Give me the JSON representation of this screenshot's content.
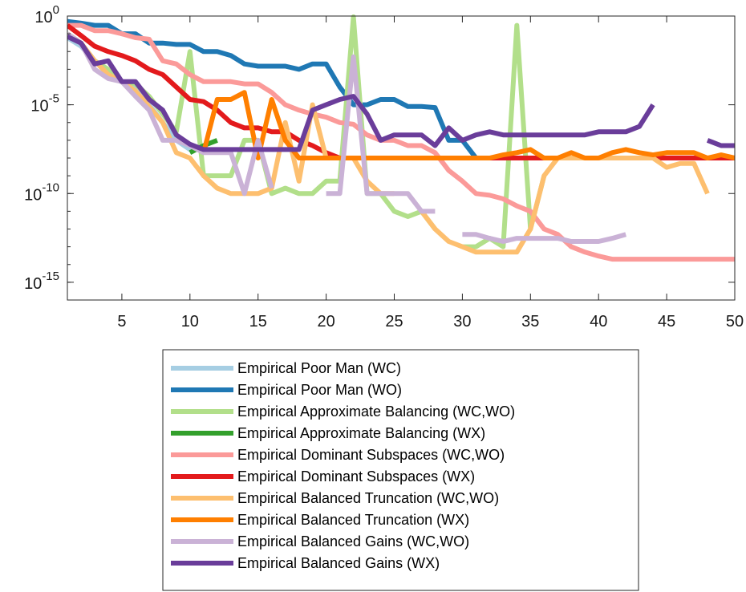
{
  "chart_data": {
    "type": "line",
    "title": "",
    "xlabel": "",
    "ylabel": "",
    "xlim": [
      1,
      50
    ],
    "ylim": [
      1e-16,
      1
    ],
    "yscale": "log",
    "xticks": [
      5,
      10,
      15,
      20,
      25,
      30,
      35,
      40,
      45,
      50
    ],
    "yticks": [
      {
        "exp": -15,
        "base": "10",
        "sup": "-15"
      },
      {
        "exp": -10,
        "base": "10",
        "sup": "-10"
      },
      {
        "exp": -5,
        "base": "10",
        "sup": "-5"
      },
      {
        "exp": 0,
        "base": "10",
        "sup": "0"
      }
    ],
    "grid": false,
    "legend_position": "below",
    "series": [
      {
        "name": "Empirical Poor Man (WC)",
        "color": "#a6cee3",
        "x": [
          1,
          2,
          3,
          4,
          5,
          6,
          7,
          8,
          9,
          10,
          11
        ],
        "y": [
          0.06,
          0.02,
          0.003,
          0.0005,
          0.0002,
          8e-05,
          1e-05,
          1e-06,
          1e-07,
          3e-08,
          3e-08
        ]
      },
      {
        "name": "Empirical Poor Man (WO)",
        "color": "#1f78b4",
        "x": [
          1,
          2,
          3,
          4,
          5,
          6,
          7,
          8,
          9,
          10,
          11,
          12,
          13,
          14,
          15,
          16,
          17,
          18,
          19,
          20,
          21,
          22,
          23,
          24,
          25,
          26,
          27,
          28,
          29,
          30,
          31,
          32,
          33,
          34,
          35,
          36,
          37,
          38,
          39,
          40,
          41,
          42,
          43,
          44,
          45,
          46,
          47,
          48,
          49,
          50
        ],
        "y": [
          0.5,
          0.4,
          0.3,
          0.3,
          0.1,
          0.1,
          0.03,
          0.03,
          0.025,
          0.025,
          0.01,
          0.01,
          0.006,
          0.002,
          0.0015,
          0.0015,
          0.0015,
          0.001,
          0.002,
          0.002,
          0.0001,
          1e-05,
          1e-05,
          2e-05,
          2e-05,
          8e-06,
          8e-06,
          7e-06,
          1e-07,
          1e-07,
          1e-08,
          1e-08,
          1e-08,
          1e-08,
          1e-08,
          1e-08,
          1e-08,
          1e-08,
          1e-08,
          1e-08,
          1e-08,
          1e-08,
          1e-08,
          1e-08,
          1e-08,
          1e-08,
          1e-08,
          1e-08,
          1e-08,
          1e-08
        ]
      },
      {
        "name": "Empirical Approximate Balancing (WC,WO)",
        "color": "#b2df8a",
        "x": [
          1,
          2,
          3,
          4,
          5,
          6,
          7,
          8,
          9,
          10,
          11,
          12,
          13,
          14,
          15,
          16,
          17,
          18,
          19,
          20,
          21,
          22,
          23,
          24,
          25,
          26,
          27,
          28,
          29,
          30,
          31,
          32,
          33,
          34,
          35,
          36
        ],
        "y": [
          0.1,
          0.03,
          0.003,
          0.001,
          0.0002,
          0.00015,
          3e-05,
          3e-06,
          3e-07,
          0.01,
          1e-09,
          1e-09,
          1e-09,
          1e-07,
          1e-07,
          1e-10,
          2e-10,
          1e-10,
          1e-10,
          5e-10,
          5e-10,
          0.9,
          1e-10,
          1e-10,
          1e-11,
          5e-12,
          1e-11,
          1e-12,
          null,
          1e-13,
          1e-13,
          3e-13,
          1e-13,
          0.3,
          1e-12,
          1e-09
        ]
      },
      {
        "name": "Empirical Approximate Balancing (WX)",
        "color": "#33a02c",
        "x": [
          10,
          11,
          12
        ],
        "y": [
          2e-08,
          5e-08,
          1e-07
        ]
      },
      {
        "name": "Empirical Dominant Subspaces (WC,WO)",
        "color": "#fb9a99",
        "x": [
          1,
          2,
          3,
          4,
          5,
          6,
          7,
          8,
          9,
          10,
          11,
          12,
          13,
          14,
          15,
          16,
          17,
          18,
          19,
          20,
          21,
          22,
          23,
          24,
          25,
          26,
          27,
          28,
          29,
          30,
          31,
          32,
          33,
          34,
          35,
          36,
          37,
          38,
          39,
          40,
          41,
          42,
          43,
          44,
          45,
          46,
          47,
          48,
          49,
          50
        ],
        "y": [
          0.3,
          0.3,
          0.15,
          0.15,
          0.1,
          0.06,
          0.05,
          0.003,
          0.002,
          0.0005,
          0.0002,
          0.0002,
          0.0002,
          0.00015,
          0.00015,
          5e-05,
          1e-05,
          5e-06,
          3e-06,
          2e-06,
          1e-06,
          8e-07,
          2e-07,
          1e-07,
          1e-07,
          5e-08,
          5e-08,
          2e-08,
          2e-09,
          5e-10,
          1e-10,
          8e-11,
          5e-11,
          2e-11,
          1e-11,
          1e-12,
          5e-13,
          1e-13,
          5e-14,
          3e-14,
          2e-14,
          2e-14,
          2e-14,
          2e-14,
          2e-14,
          2e-14,
          2e-14,
          2e-14,
          2e-14,
          2e-14
        ]
      },
      {
        "name": "Empirical Dominant Subspaces (WX)",
        "color": "#e31a1c",
        "x": [
          1,
          2,
          3,
          4,
          5,
          6,
          7,
          8,
          9,
          10,
          11,
          12,
          13,
          14,
          15,
          16,
          17,
          18,
          19,
          20,
          21,
          22,
          23,
          24,
          25,
          26,
          27,
          28,
          29,
          30,
          31,
          32,
          33,
          34,
          35,
          36,
          37,
          38,
          39,
          40,
          41,
          42,
          43,
          44,
          45,
          46,
          47,
          48,
          49,
          50
        ],
        "y": [
          0.3,
          0.08,
          0.02,
          0.01,
          0.006,
          0.003,
          0.001,
          0.0005,
          0.0001,
          2e-05,
          1.5e-05,
          5e-06,
          1e-06,
          5e-07,
          5e-07,
          3e-07,
          3e-07,
          1e-07,
          5e-08,
          2e-08,
          1e-08,
          1e-08,
          1e-08,
          1e-08,
          1e-08,
          1e-08,
          1e-08,
          1e-08,
          1e-08,
          1e-08,
          1e-08,
          1e-08,
          1e-08,
          1e-08,
          1e-08,
          1e-08,
          1e-08,
          1e-08,
          1e-08,
          1e-08,
          1e-08,
          1e-08,
          1e-08,
          1e-08,
          1e-08,
          1e-08,
          1e-08,
          1e-08,
          1e-08,
          1e-08
        ]
      },
      {
        "name": "Empirical Balanced Truncation (WC,WO)",
        "color": "#fdbf6f",
        "x": [
          1,
          2,
          3,
          4,
          5,
          6,
          7,
          8,
          9,
          10,
          11,
          12,
          13,
          14,
          15,
          16,
          17,
          18,
          19,
          20,
          21,
          22,
          23,
          24,
          25,
          26,
          27,
          28,
          29,
          30,
          31,
          32,
          33,
          34,
          35,
          36,
          37,
          38,
          39,
          40,
          41,
          42,
          43,
          44,
          45,
          46,
          47,
          48,
          49,
          50
        ],
        "y": [
          0.1,
          0.03,
          0.003,
          0.0005,
          0.0002,
          6e-05,
          8e-06,
          1e-06,
          2e-08,
          1e-08,
          1e-09,
          2e-10,
          1e-10,
          1e-10,
          1e-10,
          2e-10,
          1e-06,
          5e-10,
          1e-05,
          1e-08,
          1e-08,
          1e-08,
          5e-10,
          1e-10,
          1e-10,
          null,
          1e-11,
          1e-12,
          2e-13,
          1e-13,
          5e-14,
          5e-14,
          5e-14,
          5e-14,
          1e-12,
          1e-09,
          1e-08,
          1e-08,
          1e-08,
          1e-08,
          1e-08,
          1e-08,
          1e-08,
          1e-08,
          3e-09,
          5e-09,
          5e-09,
          1e-10,
          null,
          null
        ]
      },
      {
        "name": "Empirical Balanced Truncation (WX)",
        "color": "#ff7f00",
        "x": [
          11,
          12,
          13,
          14,
          15,
          16,
          17,
          18,
          19,
          20,
          21,
          22,
          23,
          24,
          25,
          26,
          27,
          28,
          29,
          30,
          31,
          32,
          33,
          34,
          35,
          36,
          37,
          38,
          39,
          40,
          41,
          42,
          43,
          44,
          45,
          46,
          47,
          48,
          49,
          50
        ],
        "y": [
          2e-08,
          2e-05,
          2e-05,
          5e-05,
          1e-08,
          2e-05,
          1e-07,
          1e-08,
          1e-08,
          1e-08,
          1e-08,
          1e-08,
          1e-08,
          1e-08,
          1e-08,
          1e-08,
          1e-08,
          1e-08,
          1e-08,
          1e-08,
          1e-08,
          1e-08,
          1.5e-08,
          2e-08,
          3e-08,
          1e-08,
          1e-08,
          2e-08,
          1e-08,
          1e-08,
          2e-08,
          3e-08,
          2e-08,
          1.5e-08,
          2e-08,
          2e-08,
          2e-08,
          1e-08,
          1.5e-08,
          1e-08
        ]
      },
      {
        "name": "Empirical Balanced Gains (WC,WO)",
        "color": "#cab2d6",
        "x": [
          1,
          2,
          3,
          4,
          5,
          6,
          7,
          8,
          9,
          10,
          11,
          12,
          13,
          14,
          15,
          16,
          17,
          18,
          19,
          20,
          21,
          22,
          23,
          24,
          25,
          26,
          27,
          28,
          29,
          30,
          31,
          32,
          33,
          34,
          35,
          36,
          37,
          38,
          39,
          40,
          41,
          42
        ],
        "y": [
          0.1,
          0.03,
          0.001,
          0.0003,
          0.0002,
          3e-05,
          5e-06,
          1e-07,
          1e-07,
          5e-08,
          2e-08,
          2e-08,
          2e-08,
          1e-10,
          1e-07,
          2e-10,
          null,
          null,
          null,
          1e-10,
          1e-10,
          0.005,
          1e-10,
          1e-10,
          1e-10,
          1e-10,
          1e-11,
          1e-11,
          null,
          5e-13,
          5e-13,
          3e-13,
          2e-13,
          3e-13,
          3e-13,
          3e-13,
          3e-13,
          2e-13,
          2e-13,
          2e-13,
          3e-13,
          5e-13
        ]
      },
      {
        "name": "Empirical Balanced Gains (WX)",
        "color": "#6a3d9a",
        "x": [
          1,
          2,
          3,
          4,
          5,
          6,
          7,
          8,
          9,
          10,
          11,
          12,
          13,
          14,
          15,
          16,
          17,
          18,
          19,
          20,
          21,
          22,
          23,
          24,
          25,
          26,
          27,
          28,
          29,
          30,
          31,
          32,
          33,
          34,
          35,
          36,
          37,
          38,
          39,
          40,
          41,
          42,
          43,
          44,
          45,
          46,
          47,
          48,
          49,
          50
        ],
        "y": [
          0.07,
          0.03,
          0.002,
          0.003,
          0.0002,
          0.0002,
          2e-05,
          5e-06,
          2e-07,
          6e-08,
          3e-08,
          3e-08,
          3e-08,
          3e-08,
          3e-08,
          3e-08,
          3e-08,
          3e-08,
          5e-06,
          1e-05,
          2e-05,
          3e-05,
          3e-06,
          1e-07,
          2e-07,
          2e-07,
          2e-07,
          5e-08,
          5e-07,
          1e-07,
          2e-07,
          3e-07,
          2e-07,
          2e-07,
          2e-07,
          2e-07,
          2e-07,
          2e-07,
          2e-07,
          3e-07,
          3e-07,
          3e-07,
          6e-07,
          1e-05,
          null,
          null,
          null,
          1e-07,
          5e-08,
          5e-08
        ]
      }
    ]
  }
}
